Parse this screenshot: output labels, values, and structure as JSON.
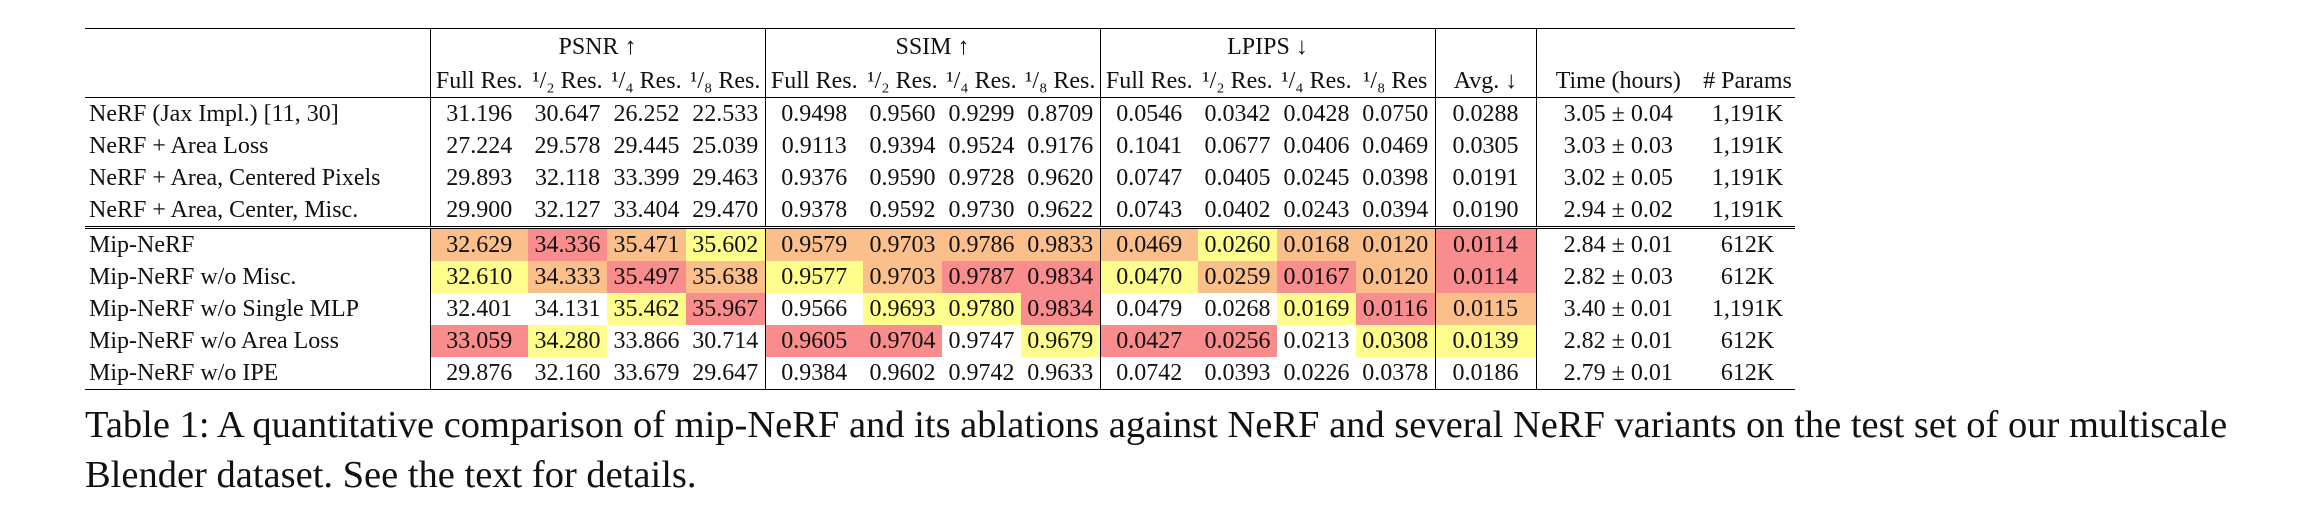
{
  "colors": {
    "gold": "#f98c8c",
    "silver": "#fbbf8c",
    "bronze": "#fefe8c"
  },
  "groups": {
    "psnr": "PSNR ↑",
    "ssim": "SSIM ↑",
    "lpips": "LPIPS ↓"
  },
  "columns": {
    "psnr": [
      "Full Res.",
      "¹/₂ Res.",
      "¹/₄ Res.",
      "¹/₈ Res."
    ],
    "ssim": [
      "Full Res.",
      "¹/₂ Res.",
      "¹/₄ Res.",
      "¹/₈ Res."
    ],
    "lpips": [
      "Full Res.",
      "¹/₂ Res.",
      "¹/₄ Res.",
      "¹/₈ Res"
    ],
    "avg": "Avg. ↓",
    "time": "Time (hours)",
    "params": "# Params"
  },
  "rows": [
    {
      "name": "NeRF (Jax Impl.) [11, 30]",
      "values": [
        "31.196",
        "30.647",
        "26.252",
        "22.533",
        "0.9498",
        "0.9560",
        "0.9299",
        "0.8709",
        "0.0546",
        "0.0342",
        "0.0428",
        "0.0750",
        "0.0288",
        "3.05 ± 0.04",
        "1,191K"
      ],
      "ranks": [
        0,
        0,
        0,
        0,
        0,
        0,
        0,
        0,
        0,
        0,
        0,
        0,
        0,
        0,
        0
      ]
    },
    {
      "name": "NeRF + Area Loss",
      "values": [
        "27.224",
        "29.578",
        "29.445",
        "25.039",
        "0.9113",
        "0.9394",
        "0.9524",
        "0.9176",
        "0.1041",
        "0.0677",
        "0.0406",
        "0.0469",
        "0.0305",
        "3.03 ± 0.03",
        "1,191K"
      ],
      "ranks": [
        0,
        0,
        0,
        0,
        0,
        0,
        0,
        0,
        0,
        0,
        0,
        0,
        0,
        0,
        0
      ]
    },
    {
      "name": "NeRF + Area, Centered Pixels",
      "values": [
        "29.893",
        "32.118",
        "33.399",
        "29.463",
        "0.9376",
        "0.9590",
        "0.9728",
        "0.9620",
        "0.0747",
        "0.0405",
        "0.0245",
        "0.0398",
        "0.0191",
        "3.02 ± 0.05",
        "1,191K"
      ],
      "ranks": [
        0,
        0,
        0,
        0,
        0,
        0,
        0,
        0,
        0,
        0,
        0,
        0,
        0,
        0,
        0
      ]
    },
    {
      "name": "NeRF + Area, Center, Misc.",
      "values": [
        "29.900",
        "32.127",
        "33.404",
        "29.470",
        "0.9378",
        "0.9592",
        "0.9730",
        "0.9622",
        "0.0743",
        "0.0402",
        "0.0243",
        "0.0394",
        "0.0190",
        "2.94 ± 0.02",
        "1,191K"
      ],
      "ranks": [
        0,
        0,
        0,
        0,
        0,
        0,
        0,
        0,
        0,
        0,
        0,
        0,
        0,
        0,
        0
      ]
    },
    {
      "name": "Mip-NeRF",
      "values": [
        "32.629",
        "34.336",
        "35.471",
        "35.602",
        "0.9579",
        "0.9703",
        "0.9786",
        "0.9833",
        "0.0469",
        "0.0260",
        "0.0168",
        "0.0120",
        "0.0114",
        "2.84 ± 0.01",
        "612K"
      ],
      "ranks": [
        2,
        1,
        2,
        3,
        2,
        2,
        2,
        2,
        2,
        3,
        2,
        2,
        1,
        0,
        0
      ]
    },
    {
      "name": "Mip-NeRF w/o Misc.",
      "values": [
        "32.610",
        "34.333",
        "35.497",
        "35.638",
        "0.9577",
        "0.9703",
        "0.9787",
        "0.9834",
        "0.0470",
        "0.0259",
        "0.0167",
        "0.0120",
        "0.0114",
        "2.82 ± 0.03",
        "612K"
      ],
      "ranks": [
        3,
        2,
        1,
        2,
        3,
        2,
        1,
        1,
        3,
        2,
        1,
        2,
        1,
        0,
        0
      ]
    },
    {
      "name": "Mip-NeRF w/o Single MLP",
      "values": [
        "32.401",
        "34.131",
        "35.462",
        "35.967",
        "0.9566",
        "0.9693",
        "0.9780",
        "0.9834",
        "0.0479",
        "0.0268",
        "0.0169",
        "0.0116",
        "0.0115",
        "3.40 ± 0.01",
        "1,191K"
      ],
      "ranks": [
        0,
        0,
        3,
        1,
        0,
        3,
        3,
        1,
        0,
        0,
        3,
        1,
        2,
        0,
        0
      ]
    },
    {
      "name": "Mip-NeRF w/o Area Loss",
      "values": [
        "33.059",
        "34.280",
        "33.866",
        "30.714",
        "0.9605",
        "0.9704",
        "0.9747",
        "0.9679",
        "0.0427",
        "0.0256",
        "0.0213",
        "0.0308",
        "0.0139",
        "2.82 ± 0.01",
        "612K"
      ],
      "ranks": [
        1,
        3,
        0,
        0,
        1,
        1,
        0,
        3,
        1,
        1,
        0,
        3,
        3,
        0,
        0
      ]
    },
    {
      "name": "Mip-NeRF w/o IPE",
      "values": [
        "29.876",
        "32.160",
        "33.679",
        "29.647",
        "0.9384",
        "0.9602",
        "0.9742",
        "0.9633",
        "0.0742",
        "0.0393",
        "0.0226",
        "0.0378",
        "0.0186",
        "2.79 ± 0.01",
        "612K"
      ],
      "ranks": [
        0,
        0,
        0,
        0,
        0,
        0,
        0,
        0,
        0,
        0,
        0,
        0,
        0,
        0,
        0
      ]
    }
  ],
  "caption": "Table 1: A quantitative comparison of mip-NeRF and its ablations against NeRF and several NeRF variants on the test set of our multiscale Blender dataset. See the text for details."
}
